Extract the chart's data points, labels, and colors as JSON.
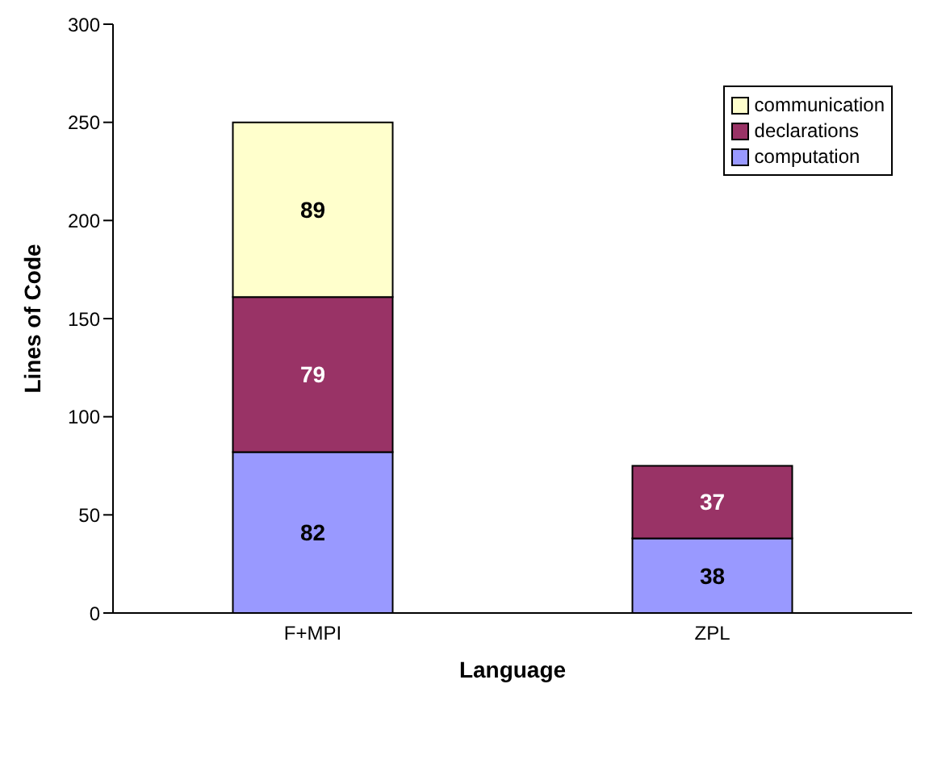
{
  "chart_data": {
    "type": "bar",
    "stacked": true,
    "xlabel": "Language",
    "ylabel": "Lines of Code",
    "categories": [
      "F+MPI",
      "ZPL"
    ],
    "series": [
      {
        "name": "computation",
        "color": "#9999ff",
        "values": [
          82,
          38
        ]
      },
      {
        "name": "declarations",
        "color": "#993366",
        "values": [
          79,
          37
        ]
      },
      {
        "name": "communication",
        "color": "#ffffcc",
        "values": [
          89,
          null
        ]
      }
    ],
    "ylim": [
      0,
      300
    ],
    "yticks": [
      0,
      50,
      100,
      150,
      200,
      250,
      300
    ],
    "grid": false,
    "legend": "top right",
    "data_labels": true
  }
}
